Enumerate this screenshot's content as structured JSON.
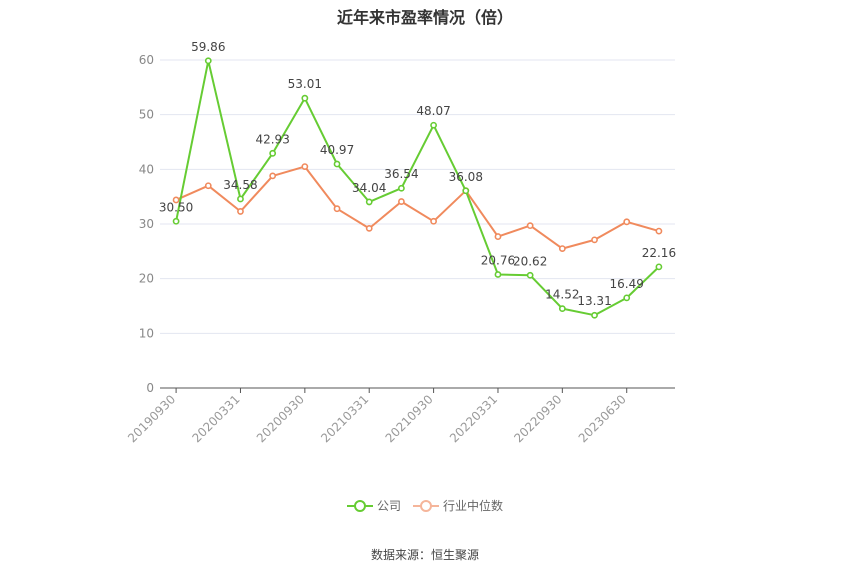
{
  "chart_data": {
    "type": "line",
    "title": "近年来市盈率情况（倍）",
    "x_tick_labels": [
      "20190930",
      "20200331",
      "20200930",
      "20210331",
      "20210930",
      "20220331",
      "20220930",
      "20230630"
    ],
    "ylim": [
      0,
      60
    ],
    "y_ticks": [
      0,
      10,
      20,
      30,
      40,
      50,
      60
    ],
    "grid": true,
    "legend_position": "bottom",
    "series": [
      {
        "name": "公司",
        "color": "#66cc33",
        "show_labels": true,
        "values": [
          30.5,
          59.86,
          34.58,
          42.93,
          53.01,
          40.97,
          34.04,
          36.54,
          48.07,
          36.08,
          20.76,
          20.62,
          14.52,
          13.31,
          16.49,
          22.16
        ],
        "labels": [
          "30.50",
          "59.86",
          "34.58",
          "42.93",
          "53.01",
          "40.97",
          "34.04",
          "36.54",
          "48.07",
          "36.08",
          "20.76",
          "20.62",
          "14.52",
          "13.31",
          "16.49",
          "22.16"
        ]
      },
      {
        "name": "行业中位数",
        "color": "#f08a5d",
        "show_labels": false,
        "values": [
          34.4,
          37.0,
          32.3,
          38.8,
          40.5,
          32.8,
          29.2,
          34.1,
          30.5,
          36.1,
          27.7,
          29.7,
          25.5,
          27.1,
          30.4,
          28.7
        ]
      }
    ]
  },
  "source_text": "数据来源：恒生聚源"
}
